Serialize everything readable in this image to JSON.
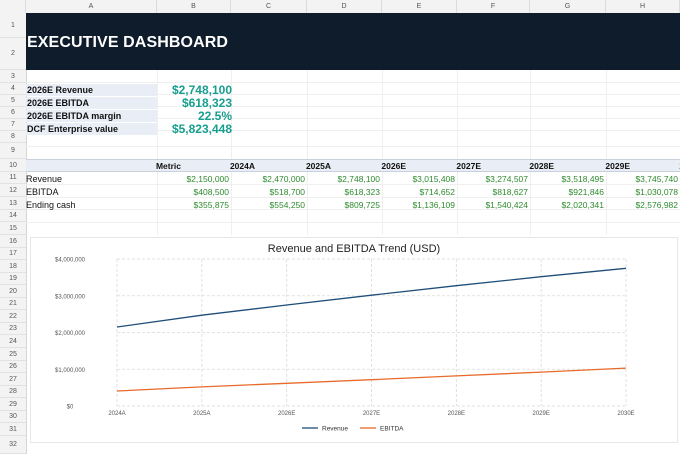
{
  "columns": [
    "A",
    "B",
    "C",
    "D",
    "E",
    "F",
    "G",
    "H"
  ],
  "rows": [
    "1",
    "2",
    "3",
    "4",
    "5",
    "6",
    "7",
    "8",
    "9",
    "10",
    "11",
    "12",
    "13",
    "14",
    "15",
    "16",
    "17",
    "18",
    "19",
    "20",
    "21",
    "22",
    "23",
    "24",
    "25",
    "26",
    "27",
    "28",
    "29",
    "30",
    "31",
    "32"
  ],
  "banner": {
    "title": "EXECUTIVE DASHBOARD"
  },
  "kpis": [
    {
      "label": "2026E Revenue",
      "value": "$2,748,100"
    },
    {
      "label": "2026E EBITDA",
      "value": "$618,323"
    },
    {
      "label": "2026E EBITDA margin",
      "value": "22.5%"
    },
    {
      "label": "DCF Enterprise value",
      "value": "$5,823,448"
    }
  ],
  "table": {
    "header_label": "Metric",
    "years": [
      "2024A",
      "2025A",
      "2026E",
      "2027E",
      "2028E",
      "2029E",
      "2030E"
    ],
    "rows": [
      {
        "label": "Revenue",
        "values": [
          "$2,150,000",
          "$2,470,000",
          "$2,748,100",
          "$3,015,408",
          "$3,274,507",
          "$3,518,495",
          "$3,745,740"
        ]
      },
      {
        "label": "EBITDA",
        "values": [
          "$408,500",
          "$518,700",
          "$618,323",
          "$714,652",
          "$818,627",
          "$921,846",
          "$1,030,078"
        ]
      },
      {
        "label": "Ending cash",
        "values": [
          "$355,875",
          "$554,250",
          "$809,725",
          "$1,136,109",
          "$1,540,424",
          "$2,020,341",
          "$2,576,982"
        ]
      }
    ]
  },
  "chart_data": {
    "type": "line",
    "title": "Revenue and EBITDA Trend (USD)",
    "x": [
      "2024A",
      "2025A",
      "2026E",
      "2027E",
      "2028E",
      "2029E",
      "2030E"
    ],
    "yticks": [
      "$0",
      "$1,000,000",
      "$2,000,000",
      "$3,000,000",
      "$4,000,000"
    ],
    "ylim": [
      0,
      4000000
    ],
    "grid": true,
    "legend_position": "bottom",
    "series": [
      {
        "name": "Revenue",
        "color": "#1f4e79",
        "values": [
          2150000,
          2470000,
          2748100,
          3015408,
          3274507,
          3518495,
          3745740
        ]
      },
      {
        "name": "EBITDA",
        "color": "#e8692a",
        "values": [
          408500,
          518700,
          618323,
          714652,
          818627,
          921846,
          1030078
        ]
      }
    ]
  }
}
